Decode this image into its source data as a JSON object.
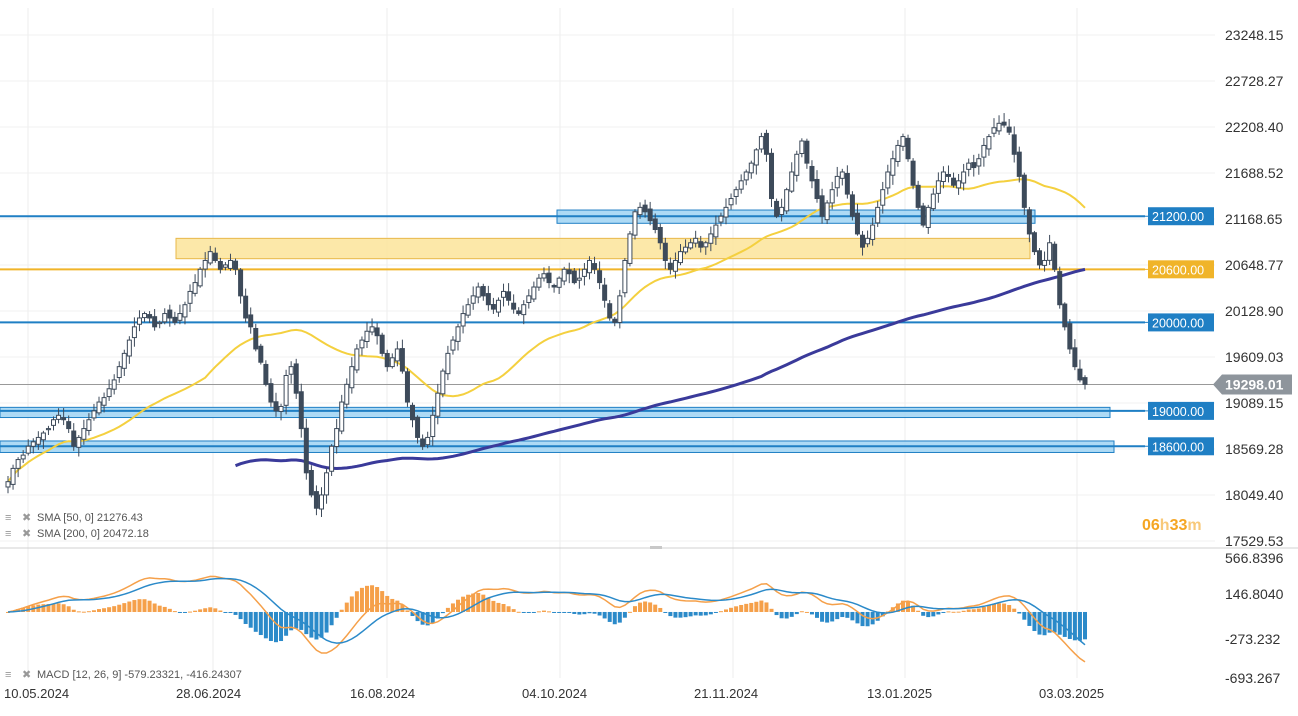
{
  "chart_data": {
    "type": "candlestick",
    "price_axis_ticks": [
      "23248.15",
      "22728.27",
      "22208.40",
      "21688.52",
      "21168.65",
      "20648.77",
      "20128.90",
      "19609.03",
      "19089.15",
      "18569.28",
      "18049.40",
      "17529.53"
    ],
    "macd_axis_ticks": [
      "566.8396",
      "146.8040",
      "-273.232",
      "-693.267"
    ],
    "x_ticks": [
      "10.05.2024",
      "28.06.2024",
      "16.08.2024",
      "04.10.2024",
      "21.11.2024",
      "13.01.2025",
      "03.03.2025"
    ],
    "price_range": [
      17529.53,
      23248.15
    ],
    "macd_range": [
      -693.267,
      566.8396
    ],
    "levels": [
      {
        "label": "21200.00",
        "value": 21200,
        "color": "#1f7fc4"
      },
      {
        "label": "20600.00",
        "value": 20600,
        "color": "#f0b429"
      },
      {
        "label": "20000.00",
        "value": 20000,
        "color": "#1f7fc4"
      },
      {
        "label": "19000.00",
        "value": 19000,
        "color": "#1f7fc4"
      },
      {
        "label": "18600.00",
        "value": 18600,
        "color": "#1f7fc4"
      }
    ],
    "zones": [
      {
        "from": 21120,
        "to": 21270,
        "color": "#9fd3f3"
      },
      {
        "from": 20720,
        "to": 20950,
        "color": "#fbe49a"
      },
      {
        "from": 18925,
        "to": 19040,
        "color": "#9fd3f3"
      },
      {
        "from": 18530,
        "to": 18660,
        "color": "#9fd3f3"
      }
    ],
    "current_price": {
      "label": "19298.01",
      "value": 19298.01
    },
    "countdown": {
      "hours": "06",
      "h": "h",
      "minutes": "33",
      "m": "m"
    },
    "sma_legend": [
      {
        "text": "SMA [50, 0] 21276.43",
        "color": "#f4d03f"
      },
      {
        "text": "SMA [200, 0] 20472.18",
        "color": "#3a3a9a"
      }
    ],
    "macd_legend": "MACD [12, 26, 9] -579.23321,  -416.24307",
    "series_closes": [
      18200,
      18350,
      18450,
      18500,
      18600,
      18650,
      18700,
      18750,
      18800,
      18900,
      18950,
      18900,
      18800,
      18600,
      18700,
      18800,
      18900,
      19000,
      19100,
      19150,
      19250,
      19350,
      19500,
      19650,
      19800,
      19950,
      20050,
      20100,
      20050,
      19950,
      20000,
      20100,
      20050,
      20000,
      20100,
      20200,
      20350,
      20450,
      20600,
      20700,
      20800,
      20700,
      20600,
      20650,
      20700,
      20600,
      20300,
      20050,
      19950,
      19700,
      19550,
      19300,
      19100,
      19000,
      19050,
      19400,
      19500,
      19200,
      18800,
      18300,
      18050,
      17900,
      18050,
      18300,
      18600,
      18800,
      19100,
      19300,
      19500,
      19700,
      19800,
      19900,
      19950,
      19850,
      19650,
      19500,
      19600,
      19700,
      19450,
      19100,
      18900,
      18700,
      18600,
      18700,
      18950,
      19200,
      19450,
      19650,
      19800,
      19950,
      20100,
      20200,
      20300,
      20400,
      20300,
      20200,
      20150,
      20250,
      20350,
      20250,
      20150,
      20100,
      20200,
      20300,
      20400,
      20500,
      20550,
      20450,
      20400,
      20500,
      20600,
      20550,
      20450,
      20500,
      20600,
      20700,
      20600,
      20450,
      20250,
      20050,
      20000,
      20300,
      20700,
      21000,
      21250,
      21300,
      21250,
      21150,
      21050,
      20900,
      20700,
      20600,
      20700,
      20800,
      20850,
      20900,
      20950,
      20850,
      20900,
      21000,
      21100,
      21200,
      21300,
      21400,
      21500,
      21600,
      21700,
      21800,
      21950,
      22100,
      21900,
      21400,
      21200,
      21300,
      21500,
      21700,
      21900,
      22050,
      21800,
      21600,
      21400,
      21200,
      21350,
      21500,
      21650,
      21700,
      21450,
      21200,
      21000,
      20850,
      20950,
      21100,
      21300,
      21500,
      21700,
      21850,
      22000,
      22100,
      21850,
      21550,
      21300,
      21100,
      21300,
      21450,
      21600,
      21700,
      21650,
      21550,
      21600,
      21700,
      21800,
      21750,
      21850,
      22000,
      22100,
      22200,
      22250,
      22230,
      22150,
      21900,
      21650,
      21300,
      21000,
      20800,
      20650,
      20700,
      20900,
      20600,
      20200,
      19950,
      19700,
      19500,
      19350,
      19300
    ]
  }
}
